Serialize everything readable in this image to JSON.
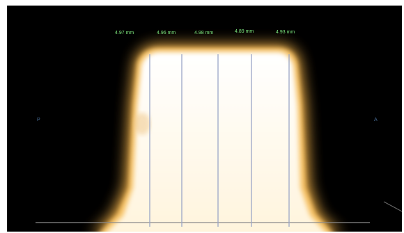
{
  "image": {
    "background_color": "#000000",
    "profile_glow_color": "#f3b24a",
    "profile_core_color": "#ffffff",
    "divider_color": "#9aa6c7",
    "measure_label_color": "#7ee87e"
  },
  "measurements": [
    {
      "label": "4.97 mm"
    },
    {
      "label": "4.96 mm"
    },
    {
      "label": "4.98 mm"
    },
    {
      "label": "4.89 mm"
    },
    {
      "label": "4.93 mm"
    }
  ],
  "side_markers": {
    "left": "P",
    "right": "A"
  }
}
